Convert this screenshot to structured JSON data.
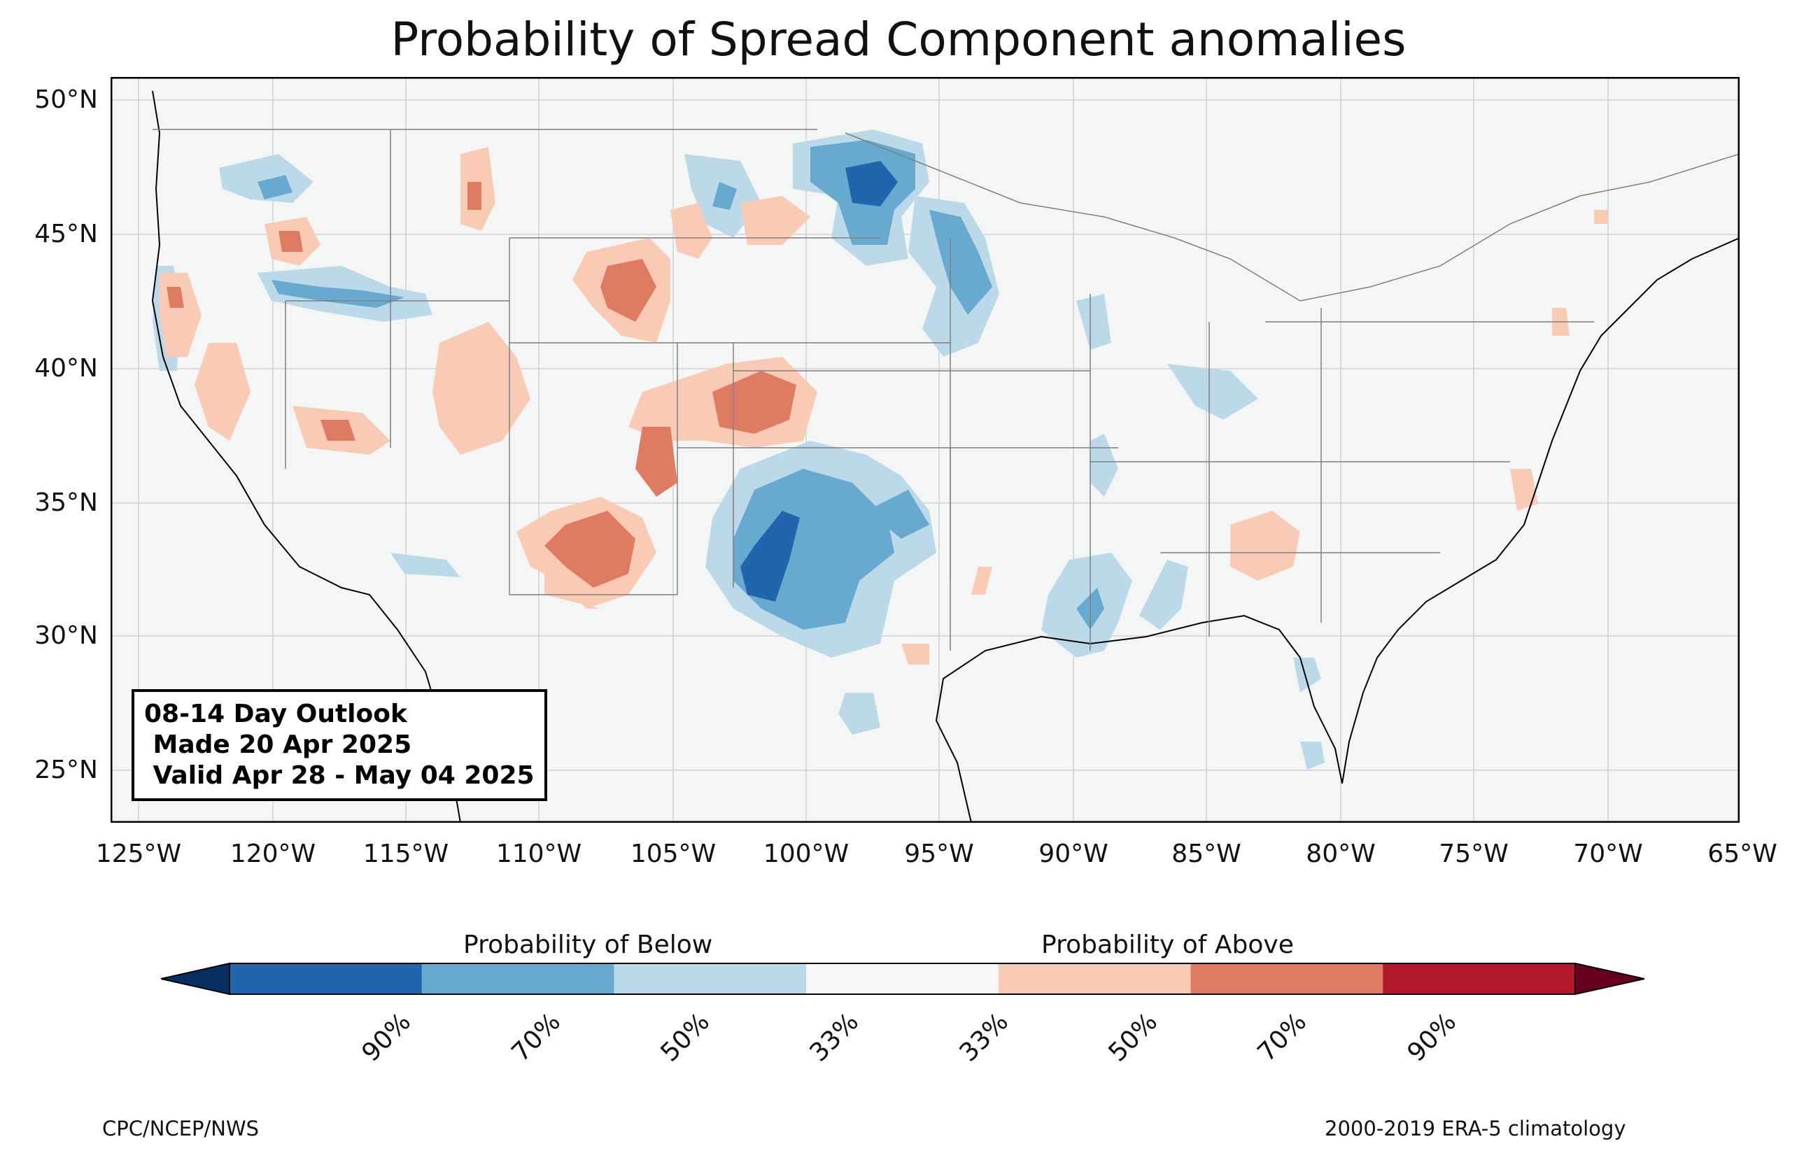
{
  "title": "Probability of Spread Component anomalies",
  "outlook": {
    "line1": "08-14 Day Outlook",
    "line2": " Made 20 Apr 2025",
    "line3": " Valid Apr 28 - May 04 2025"
  },
  "lat_labels": [
    "50°N",
    "45°N",
    "40°N",
    "35°N",
    "30°N",
    "25°N"
  ],
  "lon_labels": [
    "125°W",
    "120°W",
    "115°W",
    "110°W",
    "105°W",
    "100°W",
    "95°W",
    "90°W",
    "85°W",
    "80°W",
    "75°W",
    "70°W",
    "65°W"
  ],
  "colorbar": {
    "below_title": "Probability of Below",
    "above_title": "Probability of Above",
    "ticks": [
      "90%",
      "70%",
      "50%",
      "33%",
      "33%",
      "50%",
      "70%",
      "90%"
    ],
    "colors": [
      "#053061",
      "#2166ac",
      "#67a9cf",
      "#bcd9ea",
      "#f7f7f7",
      "#f9cbb4",
      "#e07b63",
      "#b2182b",
      "#67001f"
    ]
  },
  "footer": {
    "left": "CPC/NCEP/NWS",
    "right": "2000-2019 ERA-5 climatology"
  },
  "colors": {
    "map_background": "#f4f6f6",
    "blue_33": "#bcd9ea",
    "blue_50": "#67a9cf",
    "blue_70": "#2166ac",
    "red_33": "#f9cbb4",
    "red_50": "#e07b63",
    "red_70": "#b2182b"
  }
}
